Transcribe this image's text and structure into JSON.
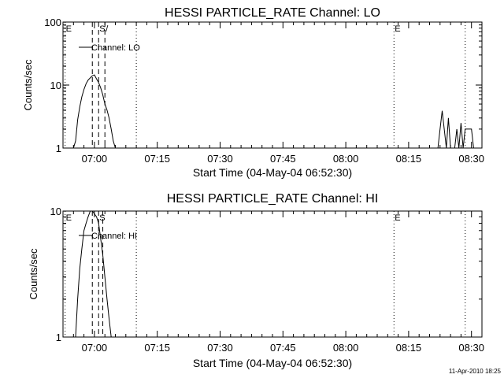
{
  "chart_data": [
    {
      "type": "line",
      "title": "HESSI PARTICLE_RATE Channel: LO",
      "xlabel": "Start Time (04-May-04 06:52:30)",
      "ylabel": "Counts/sec",
      "y_scale": "log",
      "ylim": [
        1,
        100
      ],
      "y_ticks": [
        {
          "v": 1,
          "label": "1"
        },
        {
          "v": 10,
          "label": "10"
        },
        {
          "v": 100,
          "label": "100"
        }
      ],
      "xlim": [
        "06:52:30",
        "08:32:30"
      ],
      "x_ticks": [
        "07:00",
        "07:15",
        "07:30",
        "07:45",
        "08:00",
        "08:15",
        "08:30"
      ],
      "legend": {
        "position": "top-left",
        "entries": [
          "Channel: LO"
        ]
      },
      "series": [
        {
          "name": "Channel: LO",
          "points": [
            [
              "06:55:00",
              0.5
            ],
            [
              "06:55:30",
              1.3
            ],
            [
              "06:56:00",
              2.8
            ],
            [
              "06:56:30",
              4.5
            ],
            [
              "06:57:00",
              6.5
            ],
            [
              "06:57:30",
              8.5
            ],
            [
              "06:58:00",
              10.5
            ],
            [
              "06:58:30",
              12
            ],
            [
              "06:59:00",
              13
            ],
            [
              "06:59:30",
              14
            ],
            [
              "07:00:00",
              14.5
            ],
            [
              "07:00:30",
              12.5
            ],
            [
              "07:01:00",
              11
            ],
            [
              "07:01:30",
              9
            ],
            [
              "07:02:00",
              7
            ],
            [
              "07:02:30",
              5
            ],
            [
              "07:03:00",
              4
            ],
            [
              "07:03:30",
              3
            ],
            [
              "07:04:00",
              2
            ],
            [
              "07:04:30",
              1.3
            ],
            [
              "07:05:00",
              0.5
            ],
            [
              "08:22:00",
              0.5
            ],
            [
              "08:22:30",
              2
            ],
            [
              "08:23:00",
              3.9
            ],
            [
              "08:23:30",
              2
            ],
            [
              "08:24:00",
              1
            ],
            [
              "08:24:30",
              3
            ],
            [
              "08:25:00",
              1
            ],
            [
              "08:25:30",
              0.5
            ],
            [
              "08:26:00",
              1
            ],
            [
              "08:26:30",
              2
            ],
            [
              "08:27:00",
              1
            ],
            [
              "08:27:30",
              2.5
            ],
            [
              "08:28:00",
              1
            ],
            [
              "08:28:30",
              2
            ],
            [
              "08:29:00",
              2
            ],
            [
              "08:29:30",
              2
            ],
            [
              "08:30:00",
              2
            ],
            [
              "08:30:30",
              0.5
            ]
          ]
        }
      ],
      "vlines": [
        {
          "x": "06:53:00",
          "style": "dotted",
          "label": "E"
        },
        {
          "x": "06:59:30",
          "style": "dashed",
          "label": ""
        },
        {
          "x": "07:01:00",
          "style": "dashed",
          "label": "S"
        },
        {
          "x": "07:02:30",
          "style": "dashed",
          "label": "/"
        },
        {
          "x": "07:10:00",
          "style": "dotted",
          "label": ""
        },
        {
          "x": "08:11:30",
          "style": "dotted",
          "label": "E"
        },
        {
          "x": "08:28:30",
          "style": "dotted",
          "label": ""
        }
      ]
    },
    {
      "type": "line",
      "title": "HESSI PARTICLE_RATE Channel: HI",
      "xlabel": "Start Time (04-May-04 06:52:30)",
      "ylabel": "Counts/sec",
      "y_scale": "log",
      "ylim": [
        1,
        10
      ],
      "y_ticks": [
        {
          "v": 1,
          "label": "1"
        },
        {
          "v": 10,
          "label": "10"
        }
      ],
      "xlim": [
        "06:52:30",
        "08:32:30"
      ],
      "x_ticks": [
        "07:00",
        "07:15",
        "07:30",
        "07:45",
        "08:00",
        "08:15",
        "08:30"
      ],
      "legend": {
        "position": "top-left",
        "entries": [
          "Channel: HI"
        ]
      },
      "series": [
        {
          "name": "Channel: HI",
          "points": [
            [
              "06:55:30",
              0.5
            ],
            [
              "06:56:00",
              2
            ],
            [
              "06:56:30",
              3.5
            ],
            [
              "06:57:00",
              5
            ],
            [
              "06:57:30",
              7
            ],
            [
              "06:58:00",
              8
            ],
            [
              "06:58:30",
              9
            ],
            [
              "06:59:00",
              10
            ],
            [
              "06:59:30",
              10
            ],
            [
              "07:00:00",
              9.5
            ],
            [
              "07:00:30",
              9
            ],
            [
              "07:01:00",
              8
            ],
            [
              "07:01:30",
              6
            ],
            [
              "07:02:00",
              4.5
            ],
            [
              "07:02:30",
              3
            ],
            [
              "07:03:00",
              2
            ],
            [
              "07:03:30",
              1.4
            ],
            [
              "07:04:00",
              1
            ],
            [
              "07:04:30",
              0.5
            ]
          ]
        }
      ],
      "vlines": [
        {
          "x": "06:53:00",
          "style": "dotted",
          "label": "E"
        },
        {
          "x": "06:59:30",
          "style": "dashed",
          "label": ""
        },
        {
          "x": "07:01:00",
          "style": "dashed",
          "label": "S"
        },
        {
          "x": "07:02:00",
          "style": "dashed",
          "label": ""
        },
        {
          "x": "07:10:00",
          "style": "dotted",
          "label": ""
        },
        {
          "x": "08:11:30",
          "style": "dotted",
          "label": "E"
        },
        {
          "x": "08:28:30",
          "style": "dotted",
          "label": ""
        }
      ]
    }
  ],
  "footer": {
    "timestamp": "11-Apr-2010 18:25"
  }
}
